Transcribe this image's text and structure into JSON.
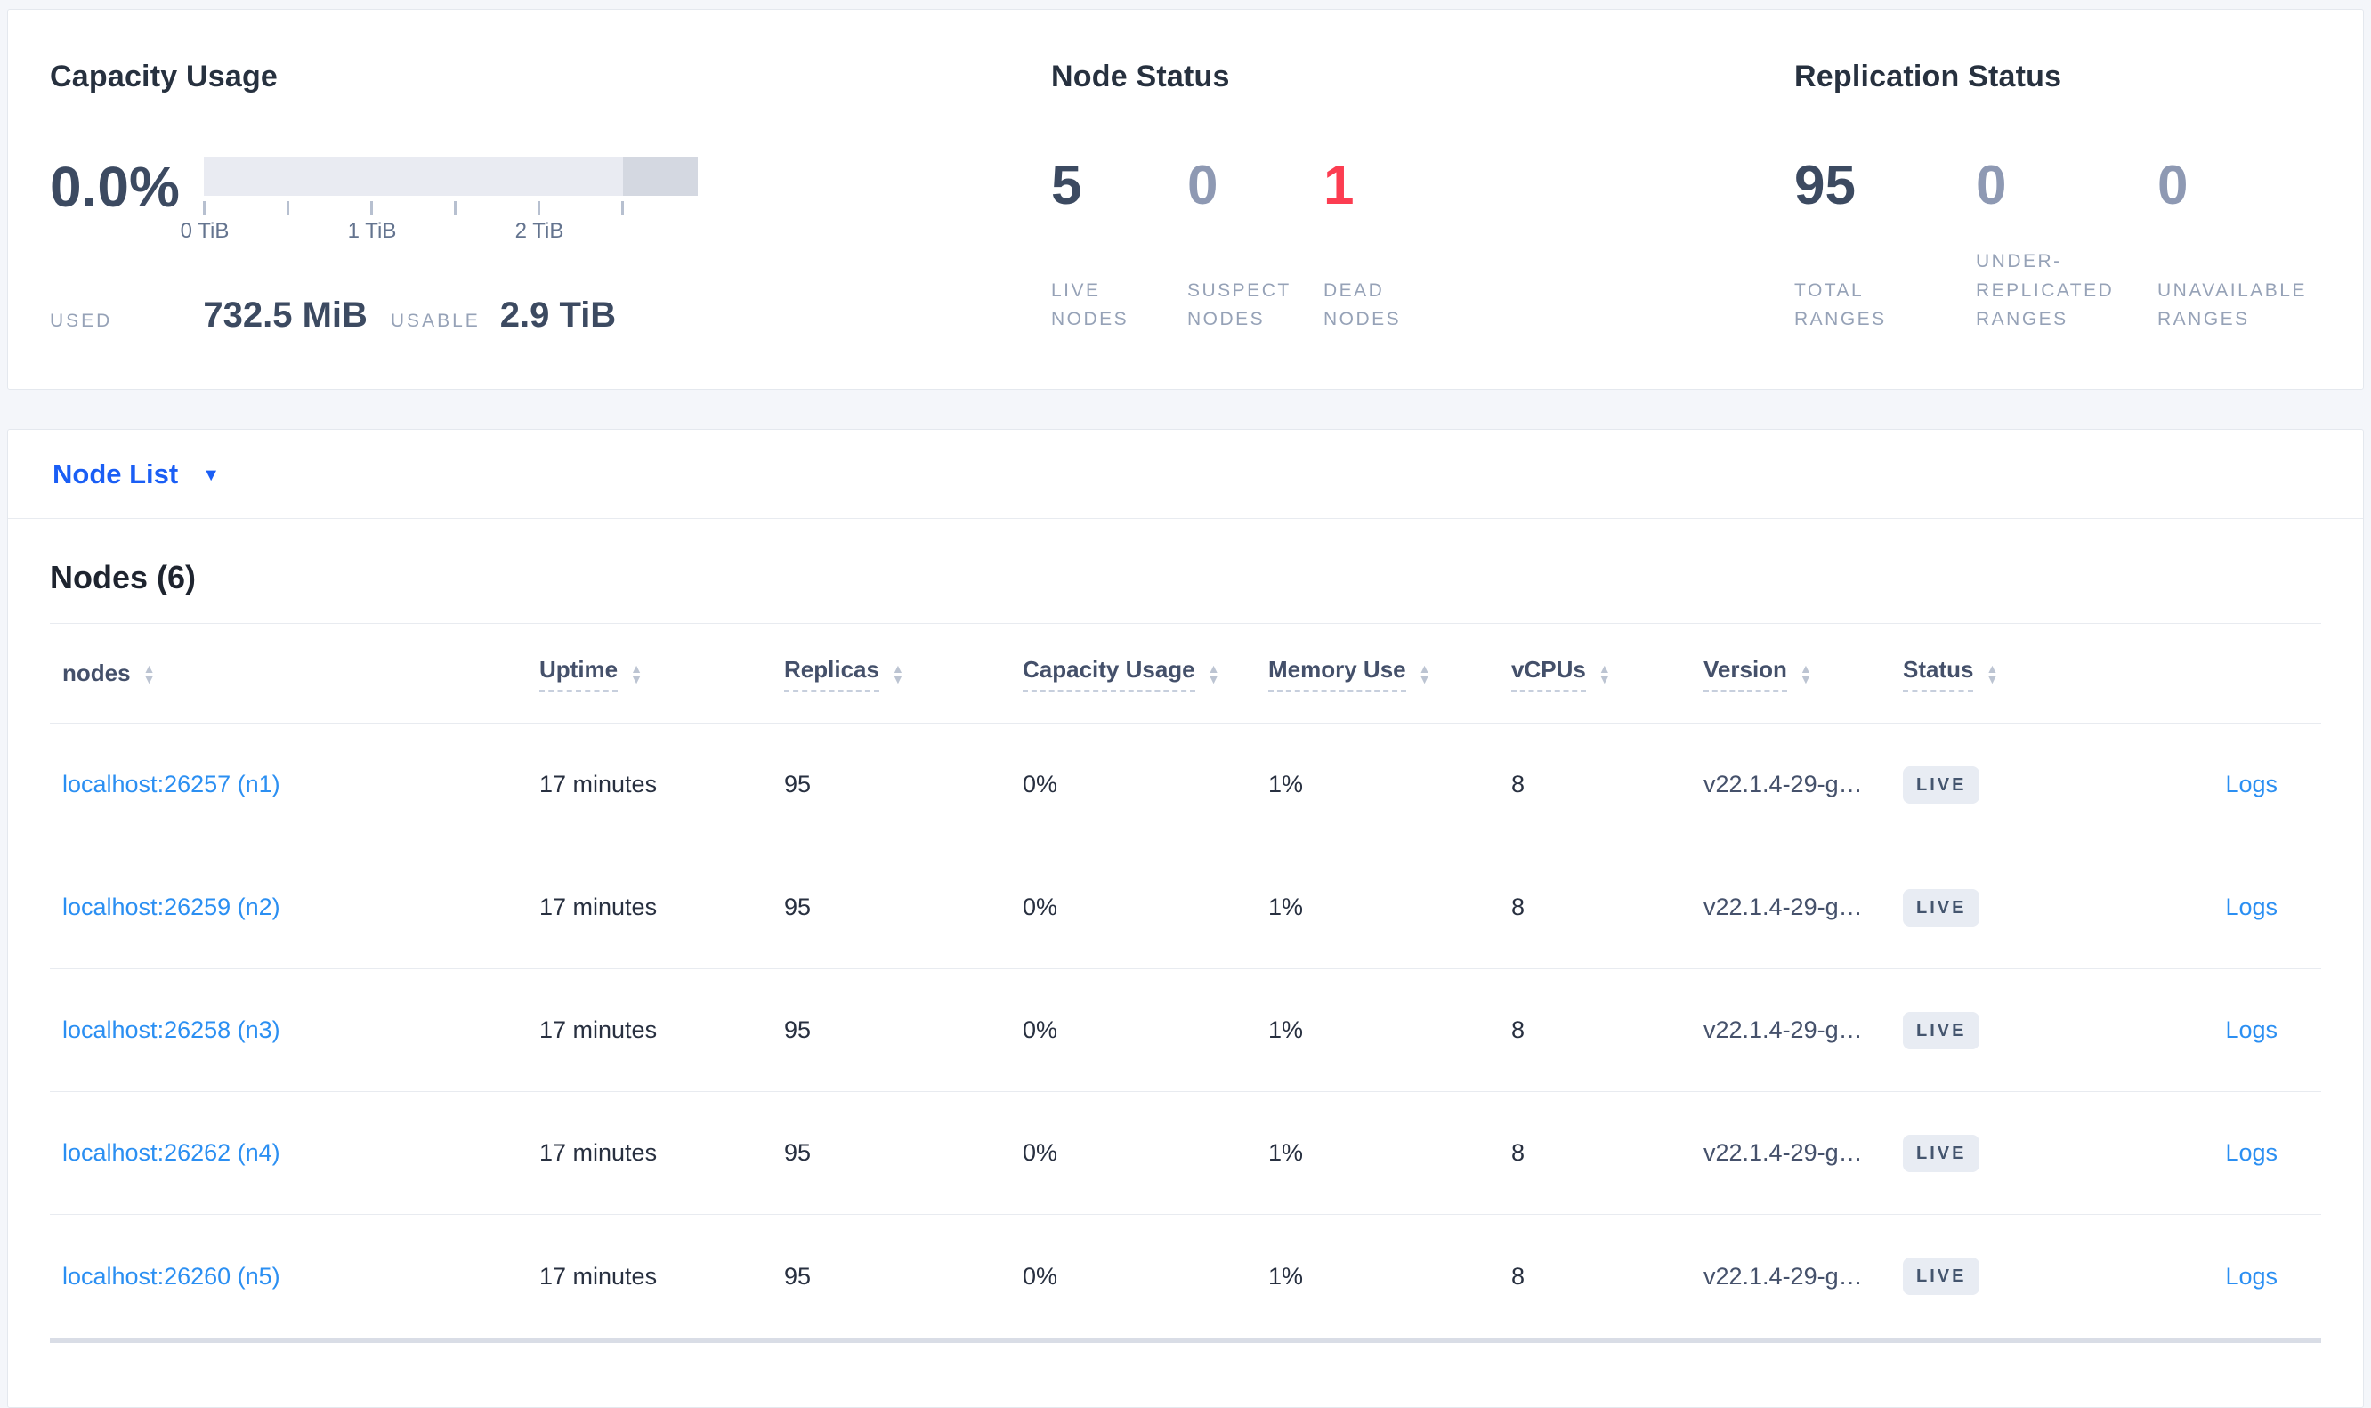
{
  "summary": {
    "capacity": {
      "title": "Capacity Usage",
      "percent": "0.0%",
      "used_label": "USED",
      "used_value": "732.5 MiB",
      "usable_label": "USABLE",
      "usable_value": "2.9 TiB",
      "axis_labels": [
        {
          "text": "0 TiB",
          "tick": 0
        },
        {
          "text": "1 TiB",
          "tick": 2
        },
        {
          "text": "2 TiB",
          "tick": 4
        }
      ],
      "tick_count": 6
    },
    "node_status": {
      "title": "Node Status",
      "metrics": [
        {
          "value": "5",
          "label": "LIVE\nNODES",
          "color": "#3c4a61"
        },
        {
          "value": "0",
          "label": "SUSPECT\nNODES",
          "color": "#8e99b3"
        },
        {
          "value": "1",
          "label": "DEAD\nNODES",
          "color": "#fc3d51"
        }
      ]
    },
    "replication_status": {
      "title": "Replication Status",
      "metrics": [
        {
          "value": "95",
          "label": "TOTAL\nRANGES",
          "color": "#3c4a61"
        },
        {
          "value": "0",
          "label": "UNDER-\nREPLICATED\nRANGES",
          "color": "#8e99b3"
        },
        {
          "value": "0",
          "label": "UNAVAILABLE\nRANGES",
          "color": "#8e99b3"
        }
      ]
    }
  },
  "view_selector": {
    "label": "Node List",
    "caret": "▼"
  },
  "nodes_section": {
    "title": "Nodes (6)",
    "sort_up_glyph": "▲",
    "sort_down_glyph": "▼",
    "columns": [
      {
        "label": "nodes",
        "dashed": false,
        "sortable": true
      },
      {
        "label": "Uptime",
        "dashed": true,
        "sortable": true
      },
      {
        "label": "Replicas",
        "dashed": true,
        "sortable": true
      },
      {
        "label": "Capacity Usage",
        "dashed": true,
        "sortable": true
      },
      {
        "label": "Memory Use",
        "dashed": true,
        "sortable": true
      },
      {
        "label": "vCPUs",
        "dashed": true,
        "sortable": true
      },
      {
        "label": "Version",
        "dashed": true,
        "sortable": true
      },
      {
        "label": "Status",
        "dashed": true,
        "sortable": true
      },
      {
        "label": "",
        "dashed": false,
        "sortable": false
      }
    ],
    "rows": [
      {
        "node": "localhost:26257 (n1)",
        "uptime": "17 minutes",
        "replicas": "95",
        "capacity": "0%",
        "memory": "1%",
        "vcpus": "8",
        "version": "v22.1.4-29-g…",
        "status": "LIVE",
        "logs": "Logs"
      },
      {
        "node": "localhost:26259 (n2)",
        "uptime": "17 minutes",
        "replicas": "95",
        "capacity": "0%",
        "memory": "1%",
        "vcpus": "8",
        "version": "v22.1.4-29-g…",
        "status": "LIVE",
        "logs": "Logs"
      },
      {
        "node": "localhost:26258 (n3)",
        "uptime": "17 minutes",
        "replicas": "95",
        "capacity": "0%",
        "memory": "1%",
        "vcpus": "8",
        "version": "v22.1.4-29-g…",
        "status": "LIVE",
        "logs": "Logs"
      },
      {
        "node": "localhost:26262 (n4)",
        "uptime": "17 minutes",
        "replicas": "95",
        "capacity": "0%",
        "memory": "1%",
        "vcpus": "8",
        "version": "v22.1.4-29-g…",
        "status": "LIVE",
        "logs": "Logs"
      },
      {
        "node": "localhost:26260 (n5)",
        "uptime": "17 minutes",
        "replicas": "95",
        "capacity": "0%",
        "memory": "1%",
        "vcpus": "8",
        "version": "v22.1.4-29-g…",
        "status": "LIVE",
        "logs": "Logs"
      }
    ]
  }
}
